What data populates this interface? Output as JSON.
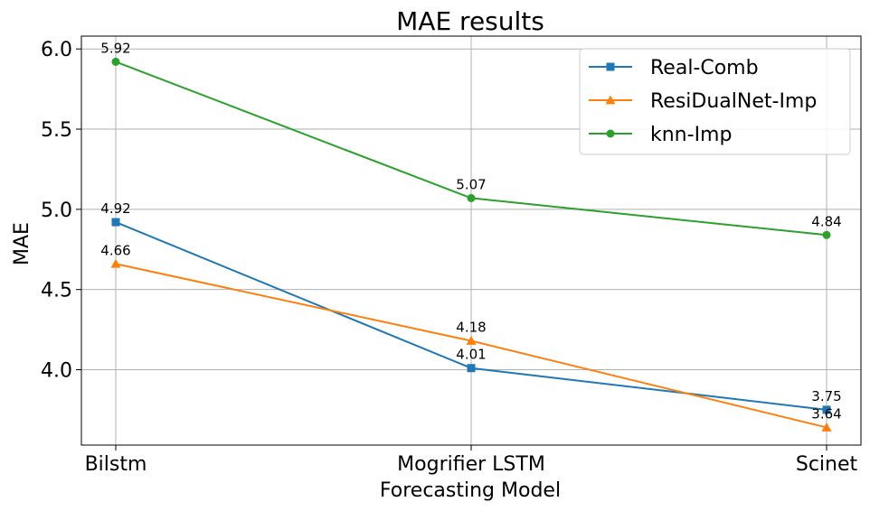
{
  "chart_data": {
    "type": "line",
    "title": "MAE results",
    "xlabel": "Forecasting Model",
    "ylabel": "MAE",
    "categories": [
      "Bilstm",
      "Mogrifier LSTM",
      "Scinet"
    ],
    "ylim": [
      3.53,
      6.08
    ],
    "yticks": [
      4.0,
      4.5,
      5.0,
      5.5,
      6.0
    ],
    "ytick_labels": [
      "4.0",
      "4.5",
      "5.0",
      "5.5",
      "6.0"
    ],
    "grid": true,
    "legend_position": "top-right",
    "series": [
      {
        "name": "Real-Comb",
        "values": [
          4.92,
          4.01,
          3.75
        ],
        "labels": [
          "4.92",
          "4.01",
          "3.75"
        ],
        "color": "#1f77b4",
        "marker": "square"
      },
      {
        "name": "ResiDualNet-Imp",
        "values": [
          4.66,
          4.18,
          3.64
        ],
        "labels": [
          "4.66",
          "4.18",
          "3.64"
        ],
        "color": "#ff7f0e",
        "marker": "triangle"
      },
      {
        "name": "knn-Imp",
        "values": [
          5.92,
          5.07,
          4.84
        ],
        "labels": [
          "5.92",
          "5.07",
          "4.84"
        ],
        "color": "#2ca02c",
        "marker": "circle"
      }
    ]
  }
}
